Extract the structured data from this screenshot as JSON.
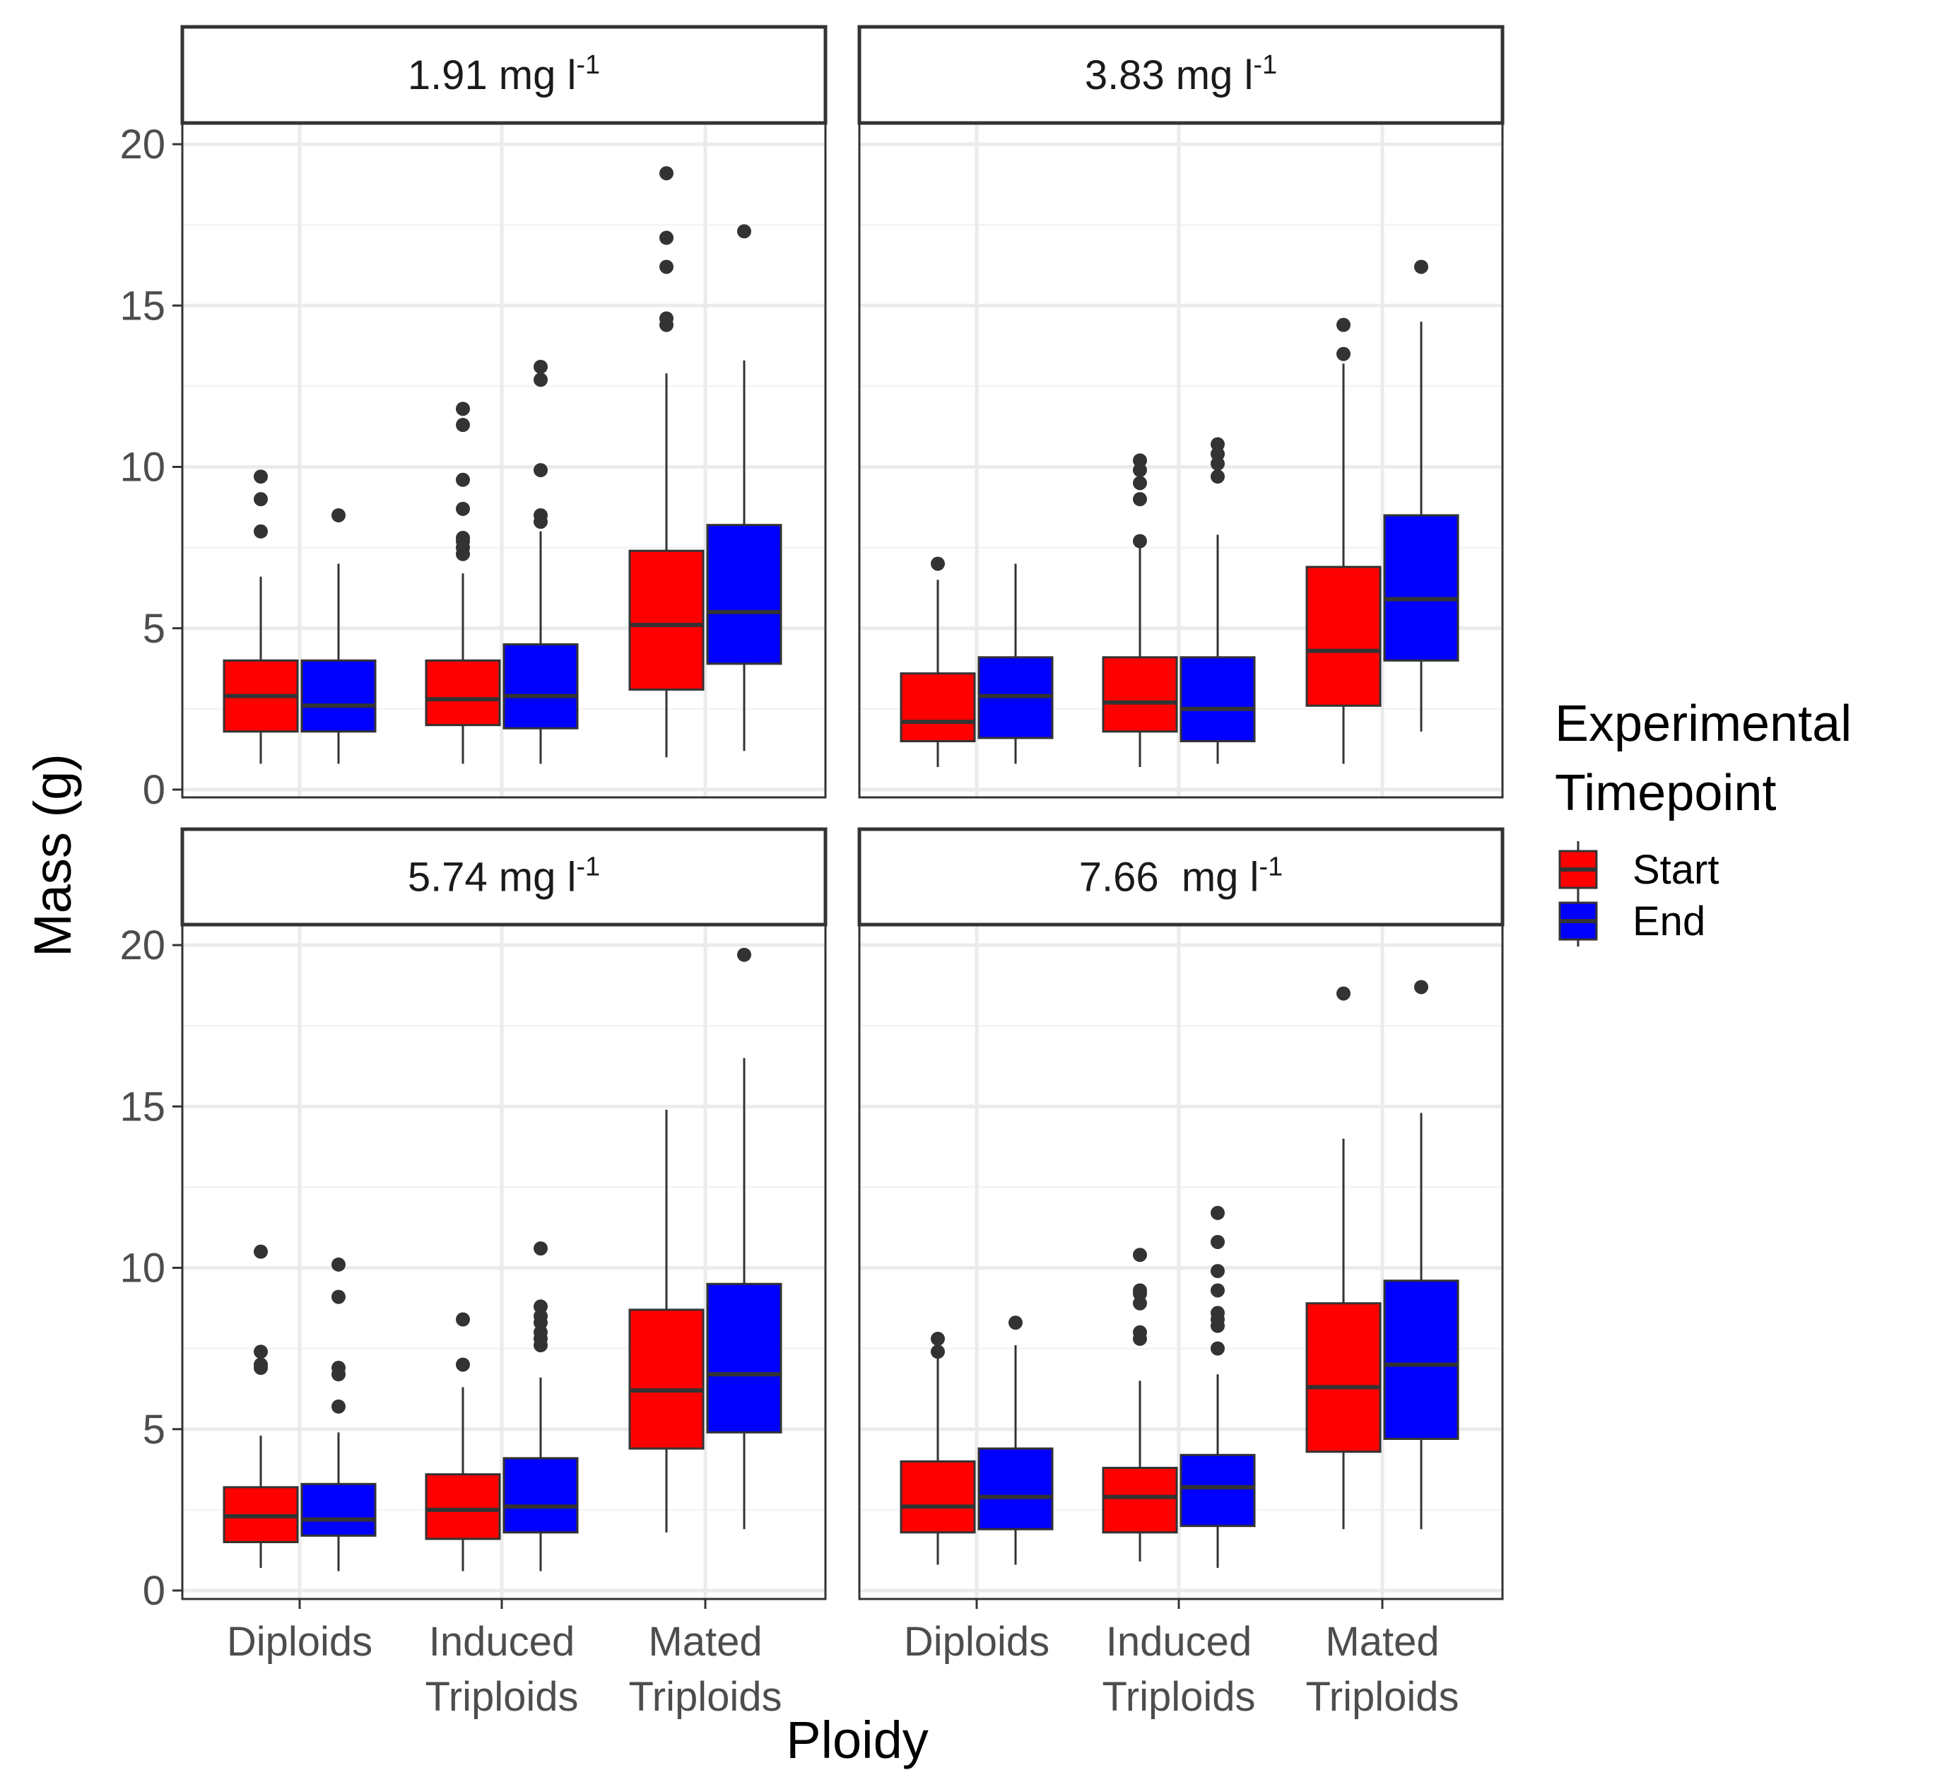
{
  "chart_data": {
    "type": "boxplot",
    "xlabel": "Ploidy",
    "ylabel": "Mass (g)",
    "ylim": [
      0,
      20
    ],
    "yticks": [
      "0",
      "5",
      "10",
      "15",
      "20"
    ],
    "categories": [
      {
        "lines": [
          "Diploids"
        ]
      },
      {
        "lines": [
          "Induced",
          "Triploids"
        ]
      },
      {
        "lines": [
          "Mated",
          "Triploids"
        ]
      }
    ],
    "legend": {
      "title_lines": [
        "Experimental",
        "Timepoint"
      ],
      "position": "right",
      "entries": [
        {
          "name": "Start",
          "color": "#ff0000"
        },
        {
          "name": "End",
          "color": "#0000ff"
        }
      ]
    },
    "grid": true,
    "panels": [
      {
        "strip_label": "1.91 mg l",
        "strip_sup": "-1",
        "groups": [
          {
            "category": "Diploids",
            "start": {
              "whislo": 0.8,
              "q1": 1.8,
              "med": 2.9,
              "q3": 4.0,
              "whishi": 6.6,
              "fliers": [
                8.0,
                9.0,
                9.7
              ]
            },
            "end": {
              "whislo": 0.8,
              "q1": 1.8,
              "med": 2.6,
              "q3": 4.0,
              "whishi": 7.0,
              "fliers": [
                8.5
              ]
            }
          },
          {
            "category": "Induced Triploids",
            "start": {
              "whislo": 0.8,
              "q1": 2.0,
              "med": 2.8,
              "q3": 4.0,
              "whishi": 6.7,
              "fliers": [
                7.3,
                7.5,
                7.7,
                7.8,
                8.7,
                9.6,
                11.3,
                11.8
              ]
            },
            "end": {
              "whislo": 0.8,
              "q1": 1.9,
              "med": 2.9,
              "q3": 4.5,
              "whishi": 8.0,
              "fliers": [
                8.3,
                8.5,
                9.9,
                12.7,
                13.1
              ]
            }
          },
          {
            "category": "Mated Triploids",
            "start": {
              "whislo": 1.0,
              "q1": 3.1,
              "med": 5.1,
              "q3": 7.4,
              "whishi": 12.9,
              "fliers": [
                14.4,
                14.6,
                16.2,
                17.1,
                19.1
              ]
            },
            "end": {
              "whislo": 1.2,
              "q1": 3.9,
              "med": 5.5,
              "q3": 8.2,
              "whishi": 13.3,
              "fliers": [
                17.3
              ]
            }
          }
        ]
      },
      {
        "strip_label": "3.83 mg l",
        "strip_sup": "-1",
        "groups": [
          {
            "category": "Diploids",
            "start": {
              "whislo": 0.7,
              "q1": 1.5,
              "med": 2.1,
              "q3": 3.6,
              "whishi": 6.5,
              "fliers": [
                7.0
              ]
            },
            "end": {
              "whislo": 0.8,
              "q1": 1.6,
              "med": 2.9,
              "q3": 4.1,
              "whishi": 7.0,
              "fliers": []
            }
          },
          {
            "category": "Induced Triploids",
            "start": {
              "whislo": 0.7,
              "q1": 1.8,
              "med": 2.7,
              "q3": 4.1,
              "whishi": 7.6,
              "fliers": [
                7.7,
                9.0,
                9.5,
                9.9,
                10.2
              ]
            },
            "end": {
              "whislo": 0.8,
              "q1": 1.5,
              "med": 2.5,
              "q3": 4.1,
              "whishi": 7.9,
              "fliers": [
                9.7,
                10.1,
                10.4,
                10.7
              ]
            }
          },
          {
            "category": "Mated Triploids",
            "start": {
              "whislo": 0.8,
              "q1": 2.6,
              "med": 4.3,
              "q3": 6.9,
              "whishi": 13.2,
              "fliers": [
                13.5,
                14.4
              ]
            },
            "end": {
              "whislo": 1.8,
              "q1": 4.0,
              "med": 5.9,
              "q3": 8.5,
              "whishi": 14.5,
              "fliers": [
                16.2
              ]
            }
          }
        ]
      },
      {
        "strip_label": "5.74 mg l",
        "strip_sup": "-1",
        "groups": [
          {
            "category": "Diploids",
            "start": {
              "whislo": 0.7,
              "q1": 1.5,
              "med": 2.3,
              "q3": 3.2,
              "whishi": 4.8,
              "fliers": [
                6.9,
                7.0,
                7.4,
                10.5
              ]
            },
            "end": {
              "whislo": 0.6,
              "q1": 1.7,
              "med": 2.2,
              "q3": 3.3,
              "whishi": 4.9,
              "fliers": [
                5.7,
                6.7,
                6.9,
                9.1,
                10.1
              ]
            }
          },
          {
            "category": "Induced Triploids",
            "start": {
              "whislo": 0.6,
              "q1": 1.6,
              "med": 2.5,
              "q3": 3.6,
              "whishi": 6.3,
              "fliers": [
                7.0,
                8.4
              ]
            },
            "end": {
              "whislo": 0.6,
              "q1": 1.8,
              "med": 2.6,
              "q3": 4.1,
              "whishi": 6.6,
              "fliers": [
                7.6,
                7.8,
                8.0,
                8.3,
                8.5,
                8.8,
                10.6
              ]
            }
          },
          {
            "category": "Mated Triploids",
            "start": {
              "whislo": 1.8,
              "q1": 4.4,
              "med": 6.2,
              "q3": 8.7,
              "whishi": 14.9,
              "fliers": []
            },
            "end": {
              "whislo": 1.9,
              "q1": 4.9,
              "med": 6.7,
              "q3": 9.5,
              "whishi": 16.5,
              "fliers": [
                19.7
              ]
            }
          }
        ]
      },
      {
        "strip_label": "7.66  mg l",
        "strip_sup": "-1",
        "groups": [
          {
            "category": "Diploids",
            "start": {
              "whislo": 0.8,
              "q1": 1.8,
              "med": 2.6,
              "q3": 4.0,
              "whishi": 7.2,
              "fliers": [
                7.4,
                7.8
              ]
            },
            "end": {
              "whislo": 0.8,
              "q1": 1.9,
              "med": 2.9,
              "q3": 4.4,
              "whishi": 7.6,
              "fliers": [
                8.3
              ]
            }
          },
          {
            "category": "Induced Triploids",
            "start": {
              "whislo": 0.9,
              "q1": 1.8,
              "med": 2.9,
              "q3": 3.8,
              "whishi": 6.5,
              "fliers": [
                7.8,
                8.0,
                8.9,
                9.2,
                9.3,
                10.4
              ]
            },
            "end": {
              "whislo": 0.7,
              "q1": 2.0,
              "med": 3.2,
              "q3": 4.2,
              "whishi": 6.7,
              "fliers": [
                7.5,
                8.2,
                8.4,
                8.6,
                9.3,
                9.9,
                10.8,
                11.7
              ]
            }
          },
          {
            "category": "Mated Triploids",
            "start": {
              "whislo": 1.9,
              "q1": 4.3,
              "med": 6.3,
              "q3": 8.9,
              "whishi": 14.0,
              "fliers": [
                18.5
              ]
            },
            "end": {
              "whislo": 1.9,
              "q1": 4.7,
              "med": 7.0,
              "q3": 9.6,
              "whishi": 14.8,
              "fliers": [
                18.7
              ]
            }
          }
        ]
      }
    ]
  }
}
